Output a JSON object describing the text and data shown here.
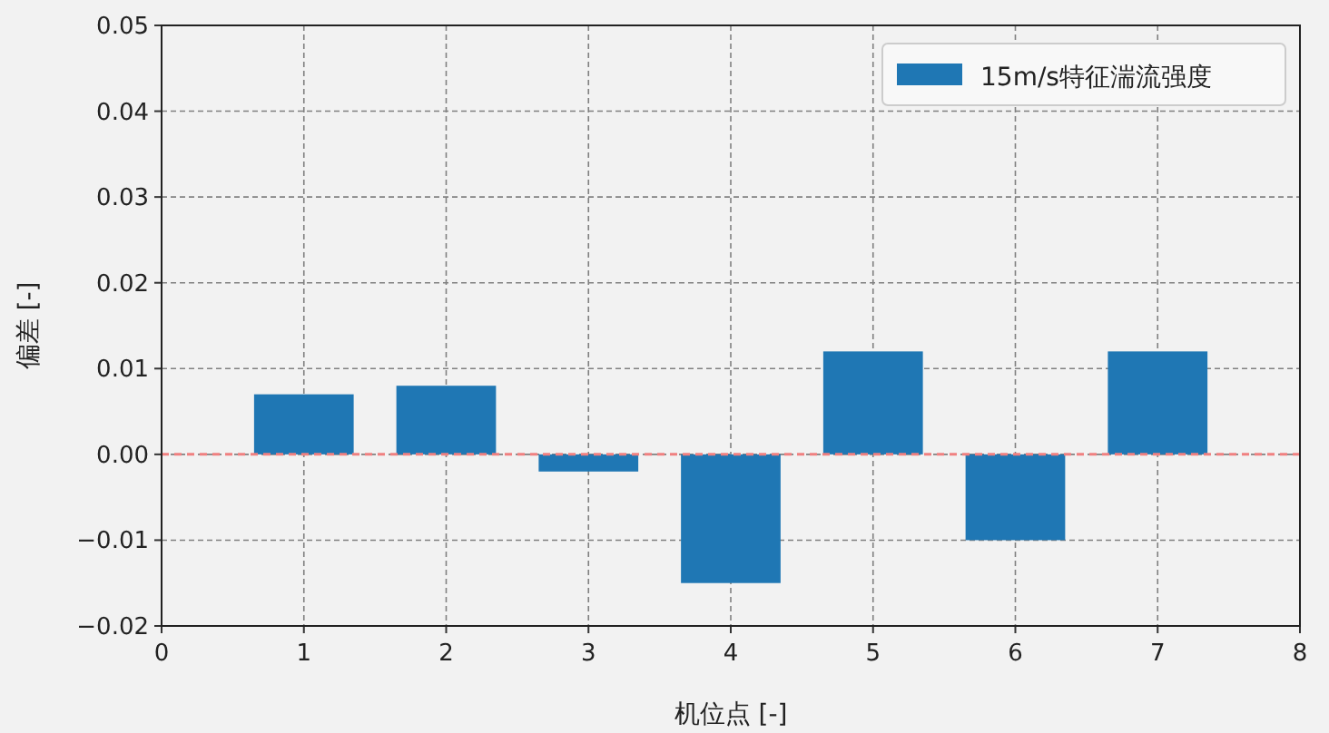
{
  "chart_data": {
    "type": "bar",
    "xlabel": "机位点 [-]",
    "ylabel": "偏差 [-]",
    "x": [
      1,
      2,
      3,
      4,
      5,
      6,
      7
    ],
    "series": [
      {
        "name": "15m/s特征湍流强度",
        "color": "#1f77b4",
        "values": [
          0.007,
          0.008,
          -0.002,
          -0.015,
          0.012,
          -0.01,
          0.012
        ]
      }
    ],
    "xlim": [
      0,
      8
    ],
    "xticks": [
      0,
      1,
      2,
      3,
      4,
      5,
      6,
      7,
      8
    ],
    "ylim": [
      -0.02,
      0.05
    ],
    "yticks": [
      {
        "value": -0.02,
        "label": "−0.02"
      },
      {
        "value": -0.01,
        "label": "−0.01"
      },
      {
        "value": 0,
        "label": "0.00"
      },
      {
        "value": 0.01,
        "label": "0.01"
      },
      {
        "value": 0.02,
        "label": "0.02"
      },
      {
        "value": 0.03,
        "label": "0.03"
      },
      {
        "value": 0.04,
        "label": "0.04"
      },
      {
        "value": 0.05,
        "label": "0.05"
      }
    ],
    "ref_lines": [
      {
        "axis": "y",
        "value": 0,
        "color": "#f08080",
        "line_style": "dashed"
      }
    ],
    "grid": true,
    "legend": "top right"
  }
}
